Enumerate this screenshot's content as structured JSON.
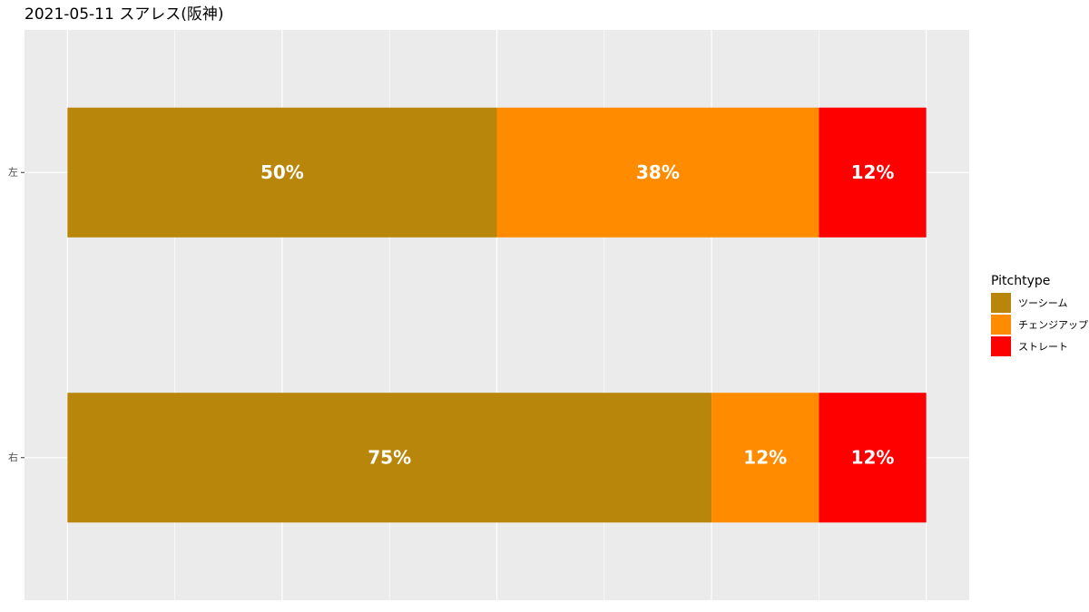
{
  "chart_data": {
    "type": "stacked-bar-horizontal",
    "title": "2021-05-11 スアレス(阪神)",
    "categories": [
      "左",
      "右"
    ],
    "series": [
      {
        "name": "ツーシーム",
        "color": "#B8860B",
        "values": [
          50,
          75
        ],
        "value_labels": [
          "50%",
          "75%"
        ]
      },
      {
        "name": "チェンジアップ",
        "color": "#FF8C00",
        "values": [
          37.5,
          12.5
        ],
        "value_labels": [
          "38%",
          "12%"
        ]
      },
      {
        "name": "ストレート",
        "color": "#FF0000",
        "values": [
          12.5,
          12.5
        ],
        "value_labels": [
          "12%",
          "12%"
        ]
      }
    ],
    "xlim": [
      -5,
      105
    ],
    "xticks": [
      0,
      25,
      50,
      75,
      100
    ],
    "grid": true,
    "legend_title": "Pitchtype",
    "legend_position": "right"
  }
}
